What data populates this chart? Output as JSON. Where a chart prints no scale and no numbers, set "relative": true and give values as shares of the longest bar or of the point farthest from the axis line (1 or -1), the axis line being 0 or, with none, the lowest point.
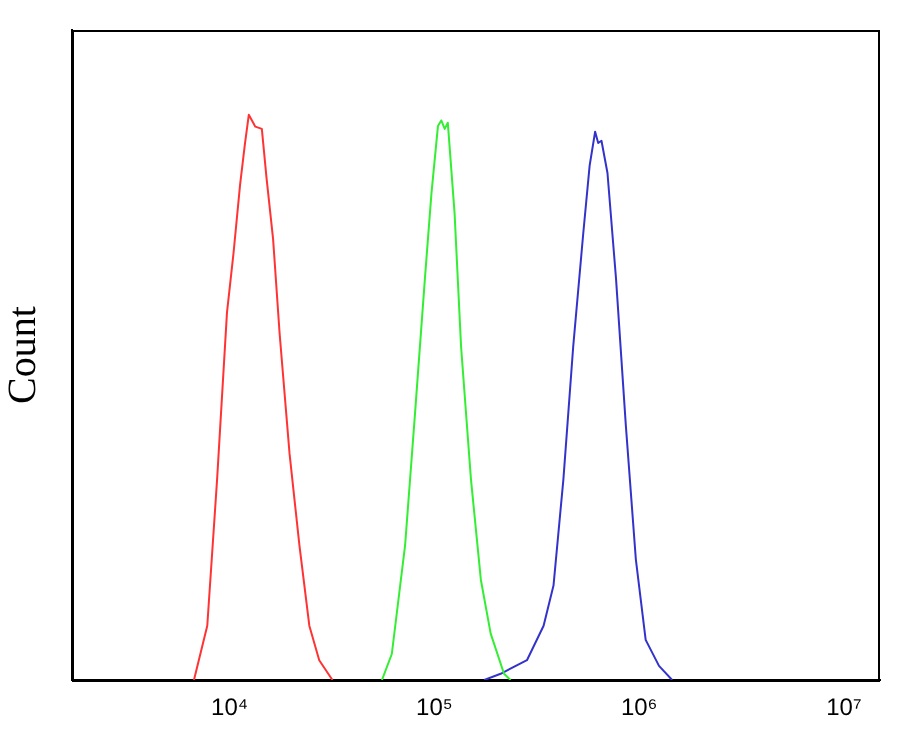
{
  "chart_data": {
    "type": "line",
    "relative": true,
    "ylabel": "Count",
    "log": "x",
    "grid": false,
    "legend": false,
    "marker": "none",
    "line_style": "solid",
    "xlim": [
      1700,
      15000000
    ],
    "xticks": [
      {
        "value": 10000,
        "label": "10⁴"
      },
      {
        "value": 100000,
        "label": "10⁵"
      },
      {
        "value": 1000000,
        "label": "10⁶"
      },
      {
        "value": 10000000,
        "label": "10⁷"
      }
    ],
    "series": [
      {
        "color": "#ff3333",
        "x": [
          6700,
          7780,
          8690,
          9710,
          10450,
          11250,
          11870,
          12410,
          13360,
          14370,
          15160,
          16310,
          17550,
          19630,
          21930,
          24510,
          27400,
          31790
        ],
        "values": [
          0,
          0.096,
          0.355,
          0.65,
          0.755,
          0.876,
          0.947,
          1,
          0.979,
          0.975,
          0.887,
          0.78,
          0.613,
          0.4,
          0.238,
          0.096,
          0.035,
          0
        ]
      },
      {
        "color": "#33ee33",
        "x": [
          55460,
          61960,
          71940,
          80380,
          89900,
          96720,
          104100,
          108100,
          112300,
          116300,
          125500,
          135000,
          150900,
          168700,
          188400,
          218800,
          235500
        ],
        "values": [
          0,
          0.046,
          0.238,
          0.47,
          0.71,
          0.86,
          0.98,
          0.99,
          0.975,
          0.986,
          0.826,
          0.59,
          0.355,
          0.177,
          0.082,
          0.011,
          0
        ]
      },
      {
        "color": "#3333cc",
        "x": [
          175200,
          210700,
          283200,
          341500,
          381700,
          426600,
          476400,
          533300,
          573000,
          609500,
          631000,
          654600,
          700300,
          770900,
          861000,
          963700,
          1076000,
          1250000,
          1449000
        ],
        "values": [
          0,
          0.011,
          0.035,
          0.096,
          0.167,
          0.355,
          0.59,
          0.79,
          0.91,
          0.97,
          0.95,
          0.954,
          0.897,
          0.71,
          0.45,
          0.213,
          0.071,
          0.025,
          0
        ]
      }
    ]
  }
}
